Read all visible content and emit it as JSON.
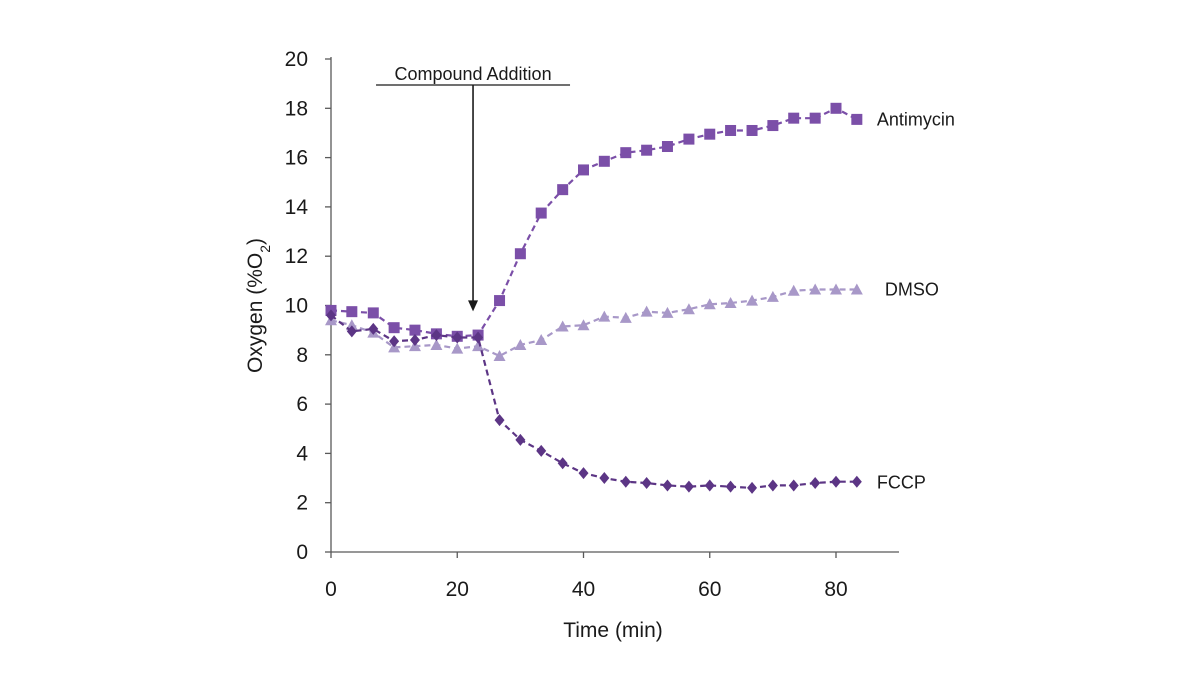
{
  "chart_data": {
    "type": "line",
    "title": "",
    "xlabel": "Time (min)",
    "ylabel": "Oxygen (%O",
    "ylabel_sub": "2",
    "ylabel_end": ")",
    "xlim": [
      0,
      90
    ],
    "ylim": [
      0,
      21
    ],
    "xticks": [
      0,
      20,
      40,
      60,
      80
    ],
    "yticks": [
      0,
      2,
      4,
      6,
      8,
      10,
      12,
      14,
      16,
      18,
      20
    ],
    "grid": false,
    "legend": "labels at line ends (right)",
    "annotation": {
      "text": "Compound Addition",
      "x": 22.5,
      "y_from": 18.9,
      "y_to": 9.8
    },
    "series": [
      {
        "name": "Antimycin",
        "marker": "square",
        "color": "#7B4FA8",
        "x": [
          0,
          3.3,
          6.7,
          10,
          13.3,
          16.7,
          20,
          23.3,
          26.7,
          30,
          33.3,
          36.7,
          40,
          43.3,
          46.7,
          50,
          53.3,
          56.7,
          60,
          63.3,
          66.7,
          70,
          73.3,
          76.7,
          80,
          83.3
        ],
        "y": [
          9.8,
          9.75,
          9.7,
          9.1,
          9.0,
          8.85,
          8.75,
          8.8,
          10.2,
          12.1,
          13.75,
          14.7,
          15.5,
          15.85,
          16.2,
          16.3,
          16.45,
          16.75,
          16.95,
          17.1,
          17.1,
          17.3,
          17.6,
          17.6,
          18.0,
          17.55
        ]
      },
      {
        "name": "DMSO",
        "marker": "triangle",
        "color": "#A898C8",
        "x": [
          0,
          3.3,
          6.7,
          10,
          13.3,
          16.7,
          20,
          23.3,
          26.7,
          30,
          33.3,
          36.7,
          40,
          43.3,
          46.7,
          50,
          53.3,
          56.7,
          60,
          63.3,
          66.7,
          70,
          73.3,
          76.7,
          80,
          83.3
        ],
        "y": [
          9.4,
          9.2,
          8.9,
          8.3,
          8.35,
          8.4,
          8.25,
          8.35,
          7.95,
          8.4,
          8.6,
          9.15,
          9.2,
          9.55,
          9.5,
          9.75,
          9.7,
          9.85,
          10.05,
          10.1,
          10.2,
          10.35,
          10.6,
          10.65,
          10.65,
          10.65
        ]
      },
      {
        "name": "FCCP",
        "marker": "diamond",
        "color": "#5C3585",
        "x": [
          0,
          3.3,
          6.7,
          10,
          13.3,
          16.7,
          20,
          23.3,
          26.7,
          30,
          33.3,
          36.7,
          40,
          43.3,
          46.7,
          50,
          53.3,
          56.7,
          60,
          63.3,
          66.7,
          70,
          73.3,
          76.7,
          80,
          83.3
        ],
        "y": [
          9.6,
          8.95,
          9.05,
          8.55,
          8.6,
          8.8,
          8.7,
          8.7,
          5.35,
          4.55,
          4.1,
          3.6,
          3.2,
          3.0,
          2.85,
          2.8,
          2.7,
          2.65,
          2.7,
          2.65,
          2.6,
          2.7,
          2.7,
          2.8,
          2.85,
          2.85
        ]
      }
    ]
  }
}
